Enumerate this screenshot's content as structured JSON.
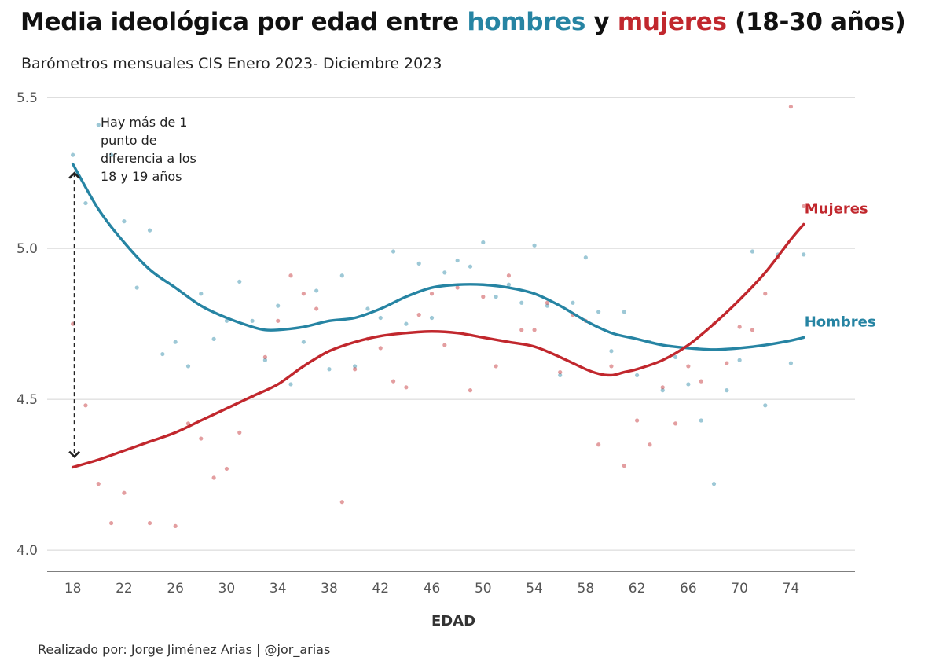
{
  "title": {
    "part1": "Media ideológica por edad entre ",
    "hombres": "hombres",
    "part2": " y ",
    "mujeres": "mujeres",
    "part3": " (18-30 años)"
  },
  "subtitle": "Barómetros mensuales CIS Enero 2023- Diciembre 2023",
  "caption": "Realizado por: Jorge Jiménez Arias | @jor_arias",
  "colors": {
    "hombres": "#2684a3",
    "mujeres": "#c1272d",
    "grid": "#d4d4d4",
    "axis": "#333333"
  },
  "chart_data": {
    "type": "scatter",
    "title": "Media ideológica por edad entre hombres y mujeres (18-30 años)",
    "xlabel": "EDAD",
    "ylabel": "",
    "xlim": [
      16,
      79
    ],
    "ylim": [
      3.93,
      5.55
    ],
    "xticks": [
      18,
      22,
      26,
      30,
      34,
      38,
      42,
      46,
      50,
      54,
      58,
      62,
      66,
      70,
      74
    ],
    "yticks": [
      4.0,
      4.5,
      5.0,
      5.5
    ],
    "ytick_labels": [
      "4.0",
      "4.5",
      "5.0",
      "5.5"
    ],
    "annotation": {
      "lines": [
        "Hay más de 1",
        "punto de",
        "diferencia a los",
        "18 y 19 años"
      ],
      "arrow_x": 18,
      "arrow_y": [
        5.25,
        4.31
      ]
    },
    "series": [
      {
        "name": "Hombres",
        "label": "Hombres",
        "color": "#2684a3",
        "points": [
          [
            18,
            5.31
          ],
          [
            19,
            5.15
          ],
          [
            20,
            5.41
          ],
          [
            21,
            5.31
          ],
          [
            22,
            5.09
          ],
          [
            23,
            4.87
          ],
          [
            24,
            5.06
          ],
          [
            25,
            4.65
          ],
          [
            26,
            4.69
          ],
          [
            27,
            4.61
          ],
          [
            28,
            4.85
          ],
          [
            29,
            4.7
          ],
          [
            30,
            4.76
          ],
          [
            31,
            4.89
          ],
          [
            32,
            4.76
          ],
          [
            33,
            4.63
          ],
          [
            34,
            4.81
          ],
          [
            35,
            4.55
          ],
          [
            36,
            4.69
          ],
          [
            37,
            4.86
          ],
          [
            38,
            4.6
          ],
          [
            39,
            4.91
          ],
          [
            40,
            4.61
          ],
          [
            41,
            4.8
          ],
          [
            42,
            4.77
          ],
          [
            43,
            4.99
          ],
          [
            44,
            4.75
          ],
          [
            45,
            4.95
          ],
          [
            46,
            4.77
          ],
          [
            47,
            4.92
          ],
          [
            48,
            4.96
          ],
          [
            49,
            4.94
          ],
          [
            50,
            5.02
          ],
          [
            51,
            4.84
          ],
          [
            52,
            4.88
          ],
          [
            53,
            4.82
          ],
          [
            54,
            5.01
          ],
          [
            55,
            4.81
          ],
          [
            56,
            4.58
          ],
          [
            57,
            4.82
          ],
          [
            58,
            4.97
          ],
          [
            59,
            4.79
          ],
          [
            60,
            4.66
          ],
          [
            61,
            4.79
          ],
          [
            62,
            4.58
          ],
          [
            63,
            4.69
          ],
          [
            64,
            4.53
          ],
          [
            65,
            4.64
          ],
          [
            66,
            4.55
          ],
          [
            67,
            4.43
          ],
          [
            68,
            4.22
          ],
          [
            69,
            4.53
          ],
          [
            70,
            4.63
          ],
          [
            71,
            4.99
          ],
          [
            72,
            4.48
          ],
          [
            73,
            4.98
          ],
          [
            74,
            4.62
          ],
          [
            75,
            4.98
          ]
        ],
        "smooth": [
          [
            18,
            5.28
          ],
          [
            20,
            5.13
          ],
          [
            22,
            5.02
          ],
          [
            24,
            4.93
          ],
          [
            26,
            4.87
          ],
          [
            28,
            4.81
          ],
          [
            30,
            4.77
          ],
          [
            32,
            4.74
          ],
          [
            33,
            4.73
          ],
          [
            34,
            4.73
          ],
          [
            36,
            4.74
          ],
          [
            38,
            4.76
          ],
          [
            40,
            4.77
          ],
          [
            42,
            4.8
          ],
          [
            44,
            4.84
          ],
          [
            46,
            4.87
          ],
          [
            48,
            4.88
          ],
          [
            50,
            4.88
          ],
          [
            52,
            4.87
          ],
          [
            54,
            4.85
          ],
          [
            56,
            4.81
          ],
          [
            58,
            4.76
          ],
          [
            60,
            4.72
          ],
          [
            62,
            4.7
          ],
          [
            64,
            4.68
          ],
          [
            66,
            4.67
          ],
          [
            68,
            4.665
          ],
          [
            70,
            4.67
          ],
          [
            72,
            4.68
          ],
          [
            74,
            4.695
          ],
          [
            75,
            4.705
          ]
        ]
      },
      {
        "name": "Mujeres",
        "label": "Mujeres",
        "color": "#c1272d",
        "points": [
          [
            18,
            4.75
          ],
          [
            19,
            4.48
          ],
          [
            20,
            4.22
          ],
          [
            21,
            4.09
          ],
          [
            22,
            4.19
          ],
          [
            24,
            4.09
          ],
          [
            26,
            4.08
          ],
          [
            27,
            4.42
          ],
          [
            28,
            4.37
          ],
          [
            29,
            4.24
          ],
          [
            30,
            4.27
          ],
          [
            31,
            4.39
          ],
          [
            32,
            4.51
          ],
          [
            33,
            4.64
          ],
          [
            34,
            4.76
          ],
          [
            35,
            4.91
          ],
          [
            36,
            4.85
          ],
          [
            37,
            4.8
          ],
          [
            39,
            4.16
          ],
          [
            40,
            4.6
          ],
          [
            41,
            4.7
          ],
          [
            42,
            4.67
          ],
          [
            43,
            4.56
          ],
          [
            44,
            4.54
          ],
          [
            45,
            4.78
          ],
          [
            46,
            4.85
          ],
          [
            47,
            4.68
          ],
          [
            48,
            4.87
          ],
          [
            49,
            4.53
          ],
          [
            50,
            4.84
          ],
          [
            51,
            4.61
          ],
          [
            52,
            4.91
          ],
          [
            53,
            4.73
          ],
          [
            54,
            4.73
          ],
          [
            55,
            4.82
          ],
          [
            56,
            4.59
          ],
          [
            57,
            4.78
          ],
          [
            58,
            4.76
          ],
          [
            59,
            4.35
          ],
          [
            60,
            4.61
          ],
          [
            61,
            4.28
          ],
          [
            62,
            4.43
          ],
          [
            63,
            4.35
          ],
          [
            64,
            4.54
          ],
          [
            65,
            4.42
          ],
          [
            66,
            4.61
          ],
          [
            67,
            4.56
          ],
          [
            68,
            4.75
          ],
          [
            69,
            4.62
          ],
          [
            70,
            4.74
          ],
          [
            71,
            4.73
          ],
          [
            72,
            4.85
          ],
          [
            73,
            4.97
          ],
          [
            74,
            5.47
          ],
          [
            75,
            5.14
          ]
        ],
        "smooth": [
          [
            18,
            4.275
          ],
          [
            20,
            4.3
          ],
          [
            22,
            4.33
          ],
          [
            24,
            4.36
          ],
          [
            26,
            4.39
          ],
          [
            28,
            4.43
          ],
          [
            30,
            4.47
          ],
          [
            32,
            4.51
          ],
          [
            34,
            4.55
          ],
          [
            36,
            4.61
          ],
          [
            38,
            4.66
          ],
          [
            40,
            4.69
          ],
          [
            42,
            4.71
          ],
          [
            44,
            4.72
          ],
          [
            46,
            4.725
          ],
          [
            48,
            4.72
          ],
          [
            50,
            4.705
          ],
          [
            52,
            4.69
          ],
          [
            54,
            4.675
          ],
          [
            56,
            4.64
          ],
          [
            58,
            4.6
          ],
          [
            59,
            4.585
          ],
          [
            60,
            4.58
          ],
          [
            61,
            4.59
          ],
          [
            62,
            4.6
          ],
          [
            64,
            4.63
          ],
          [
            66,
            4.68
          ],
          [
            68,
            4.75
          ],
          [
            70,
            4.83
          ],
          [
            72,
            4.92
          ],
          [
            74,
            5.03
          ],
          [
            75,
            5.08
          ]
        ]
      }
    ]
  }
}
